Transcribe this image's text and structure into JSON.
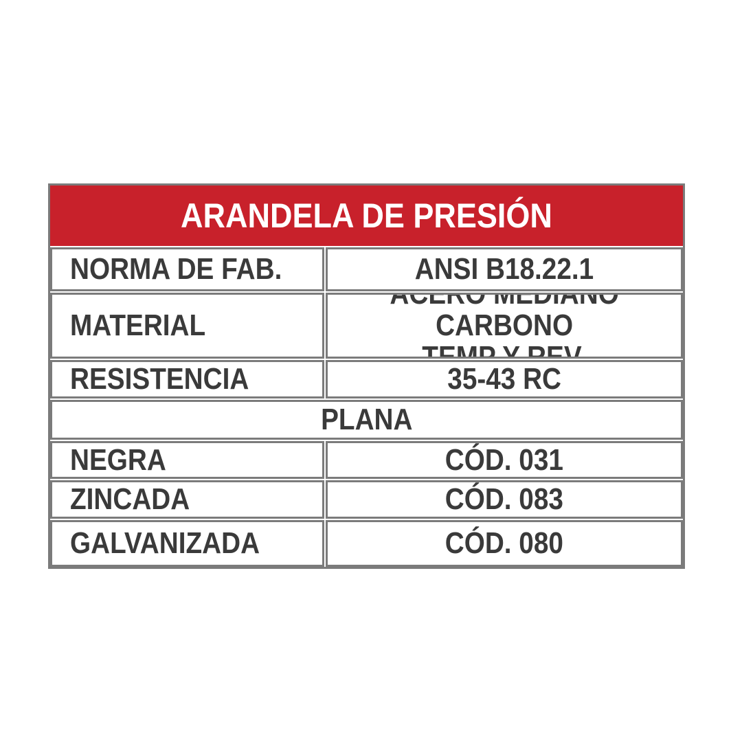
{
  "document": {
    "type": "product-spec-table",
    "title": "ARANDELA DE PRESIÓN",
    "colors": {
      "header_background": "#c8212b",
      "header_text": "#ffffff",
      "border_gray": "#7b7b7b",
      "body_text": "#3a3a3a",
      "page_background": "#ffffff"
    },
    "spec_rows": [
      {
        "label": "NORMA DE FAB.",
        "value": "ANSI B18.22.1"
      },
      {
        "label": "MATERIAL",
        "value": "ACERO MEDIANO CARBONO\nTEMP Y REV."
      },
      {
        "label": "RESISTENCIA",
        "value": "35-43 RC"
      }
    ],
    "section_header": "PLANA",
    "variant_rows": [
      {
        "label": "NEGRA",
        "value": "CÓD. 031"
      },
      {
        "label": "ZINCADA",
        "value": "CÓD. 083"
      },
      {
        "label": "GALVANIZADA",
        "value": "CÓD. 080"
      }
    ]
  }
}
